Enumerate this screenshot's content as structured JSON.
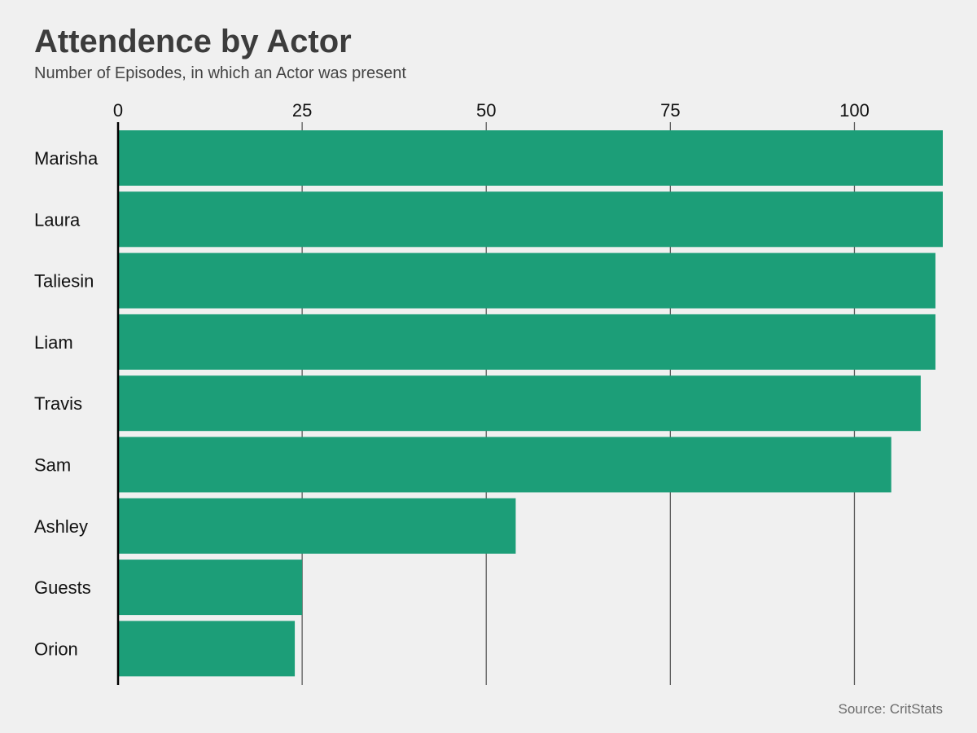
{
  "chart_data": {
    "type": "bar",
    "orientation": "horizontal",
    "title": "Attendence by Actor",
    "subtitle": "Number of Episodes, in which an Actor was present",
    "source": "Source: CritStats",
    "categories": [
      "Marisha",
      "Laura",
      "Taliesin",
      "Liam",
      "Travis",
      "Sam",
      "Ashley",
      "Guests",
      "Orion"
    ],
    "values": [
      112,
      112,
      111,
      111,
      109,
      105,
      54,
      25,
      24
    ],
    "xlim": [
      0,
      112
    ],
    "xticks": [
      0,
      25,
      50,
      75,
      100
    ],
    "xaxis_position": "top",
    "grid": true,
    "legend": "none",
    "colors": {
      "bar": "#1c9e78",
      "background": "#f0f0f0",
      "grid": "#5a5a5a",
      "axis": "#000000",
      "text": "#111111"
    }
  }
}
